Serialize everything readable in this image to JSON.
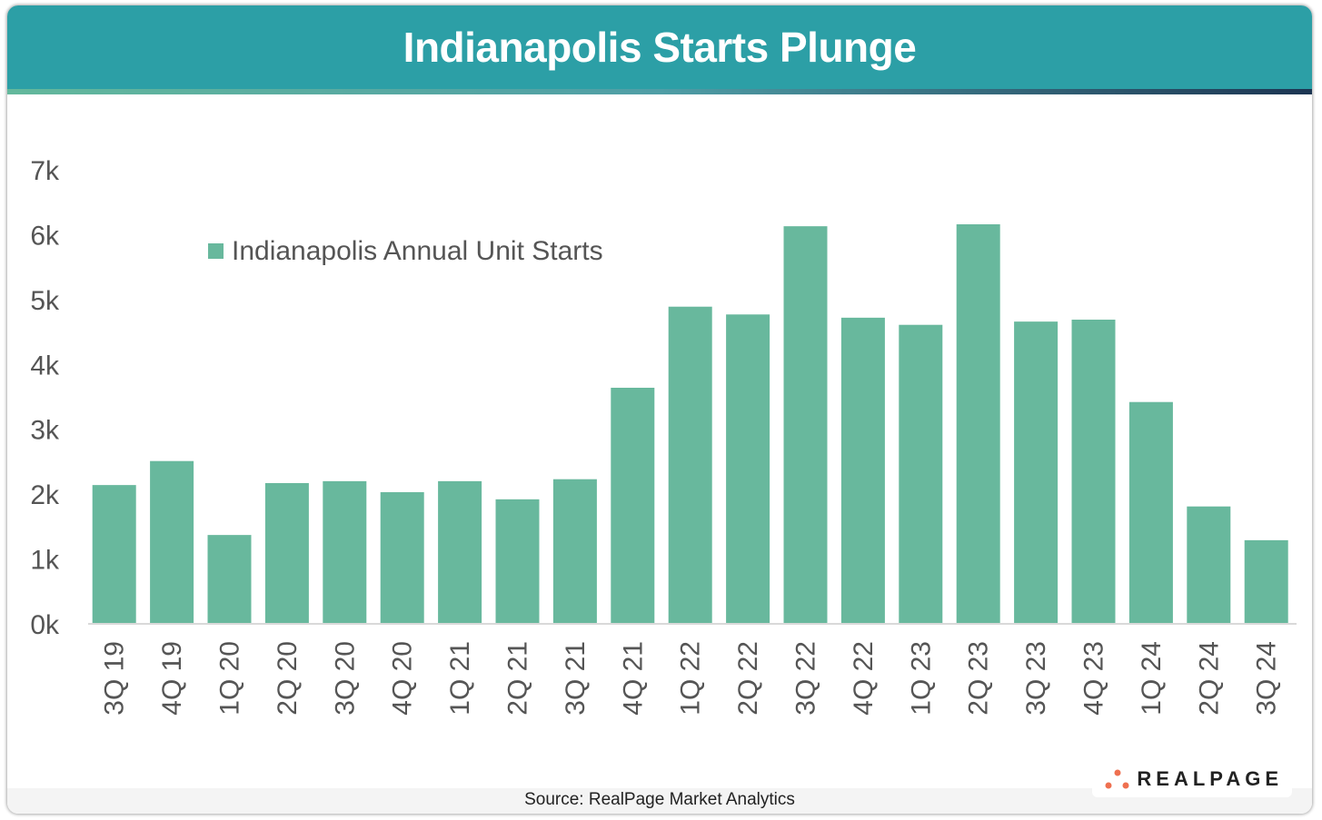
{
  "header": {
    "title": "Indianapolis Starts Plunge"
  },
  "footer": {
    "source": "Source: RealPage Market Analytics",
    "logo": "REALPAGE"
  },
  "colors": {
    "bar": "#68b89d",
    "header": "#2c9fa6",
    "logo_dots": "#ef7050"
  },
  "chart_data": {
    "type": "bar",
    "title": "Indianapolis Starts Plunge",
    "legend": {
      "position": "top-left",
      "entries": [
        "Indianapolis Annual Unit Starts"
      ]
    },
    "categories": [
      "3Q 19",
      "4Q 19",
      "1Q 20",
      "2Q 20",
      "3Q 20",
      "4Q 20",
      "1Q 21",
      "2Q 21",
      "3Q 21",
      "4Q 21",
      "1Q 22",
      "2Q 22",
      "3Q 22",
      "4Q 22",
      "1Q 23",
      "2Q 23",
      "3Q 23",
      "4Q 23",
      "1Q 24",
      "2Q 24",
      "3Q 24"
    ],
    "series": [
      {
        "name": "Indianapolis Annual Unit Starts",
        "values": [
          2140,
          2510,
          1370,
          2170,
          2200,
          2030,
          2200,
          1920,
          2230,
          3640,
          4890,
          4770,
          6130,
          4720,
          4610,
          6160,
          4660,
          4690,
          3420,
          1810,
          1290
        ]
      }
    ],
    "yticks": [
      "0k",
      "1k",
      "2k",
      "3k",
      "4k",
      "5k",
      "6k",
      "7k"
    ],
    "ylim": [
      0,
      7000
    ],
    "grid": false
  }
}
